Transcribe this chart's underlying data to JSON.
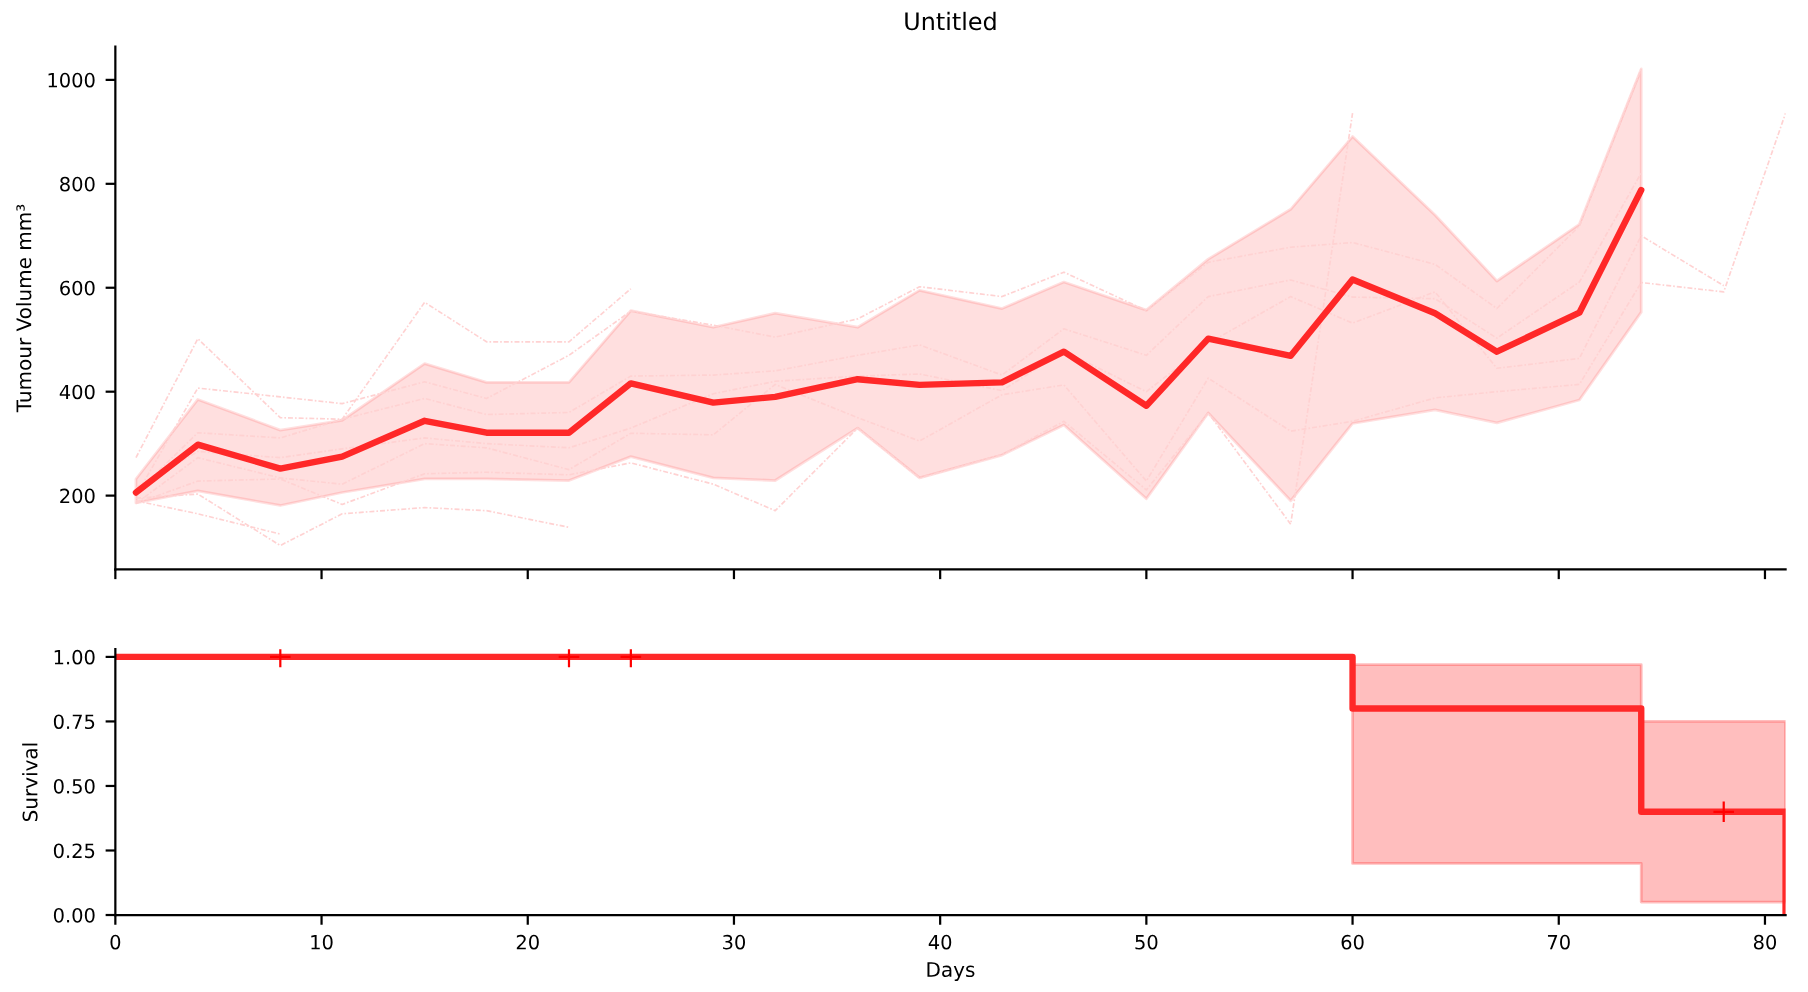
{
  "chart_data": [
    {
      "type": "line",
      "title": "Untitled",
      "ylabel": "Tumour Volume mm³",
      "xlim": [
        0,
        81
      ],
      "xticks": [
        0,
        10,
        20,
        30,
        40,
        50,
        60,
        70,
        80
      ],
      "ylim": [
        58,
        1064
      ],
      "yticks": [
        200,
        400,
        600,
        800,
        1000
      ],
      "tick_labels": "y",
      "series": [
        {
          "color": "#ffd2d2",
          "line_style": "dashed",
          "x": [
            1,
            4,
            8
          ],
          "values": [
            190,
            165,
            126
          ]
        },
        {
          "color": "#ffd2d2",
          "line_style": "dashed",
          "x": [
            1,
            4,
            8,
            11,
            15,
            18,
            22
          ],
          "values": [
            195,
            203,
            104,
            165,
            177,
            171,
            139
          ]
        },
        {
          "color": "#ffd2d2",
          "line_style": "dashed",
          "x": [
            1,
            4,
            8,
            11,
            15,
            18,
            22,
            25
          ],
          "values": [
            273,
            502,
            350,
            347,
            572,
            496,
            496,
            598
          ]
        },
        {
          "color": "#ffd2d2",
          "line_style": "dashed",
          "x": [
            1,
            4,
            8,
            11,
            15,
            18,
            22,
            25,
            29,
            32,
            36,
            39,
            43,
            46,
            50,
            53,
            57,
            60,
            64,
            67,
            71,
            74
          ],
          "values": [
            200,
            407,
            390,
            377,
            419,
            387,
            470,
            555,
            528,
            505,
            540,
            602,
            583,
            630,
            556,
            649,
            678,
            687,
            645,
            560,
            719,
            1021
          ]
        },
        {
          "color": "#ffd2d2",
          "line_style": "dashed",
          "x": [
            1,
            4,
            8,
            11,
            15,
            18,
            22,
            25,
            29,
            32,
            36,
            39,
            43,
            46,
            50,
            53,
            57,
            60,
            64,
            67,
            71,
            74
          ],
          "values": [
            205,
            321,
            311,
            347,
            387,
            356,
            360,
            430,
            432,
            440,
            470,
            490,
            432,
            521,
            470,
            583,
            615,
            582,
            579,
            503,
            611,
            821
          ]
        },
        {
          "color": "#ffd2d2",
          "line_style": "dashed",
          "x": [
            1,
            4,
            8,
            11,
            15,
            18,
            22,
            25,
            29,
            32,
            36,
            39,
            43,
            46,
            50,
            53,
            57,
            60,
            64,
            67,
            71,
            74,
            78
          ],
          "values": [
            215,
            285,
            273,
            290,
            311,
            300,
            292,
            330,
            396,
            420,
            430,
            434,
            402,
            478,
            400,
            493,
            583,
            532,
            592,
            445,
            464,
            700,
            604
          ]
        },
        {
          "color": "#ffd2d2",
          "line_style": "dashed",
          "x": [
            1,
            4,
            8,
            11,
            15,
            18,
            22,
            25,
            29,
            32,
            36,
            39,
            43,
            46,
            50,
            53,
            57,
            60,
            64,
            67,
            71,
            74,
            78,
            81
          ],
          "values": [
            185,
            273,
            234,
            222,
            300,
            292,
            250,
            320,
            317,
            414,
            350,
            305,
            394,
            413,
            228,
            426,
            324,
            343,
            388,
            400,
            414,
            610,
            592,
            936
          ]
        },
        {
          "color": "#ffd2d2",
          "line_style": "dashed",
          "x": [
            1,
            4,
            8,
            11,
            15,
            18,
            22,
            25,
            29,
            32,
            36,
            39,
            43,
            46,
            50,
            53,
            57,
            60
          ],
          "values": [
            185,
            228,
            232,
            183,
            242,
            245,
            240,
            263,
            222,
            171,
            330,
            234,
            279,
            343,
            211,
            359,
            145,
            936
          ]
        },
        {
          "color": "#ff2828",
          "line_style": "solid",
          "x": [
            1,
            4,
            8,
            11,
            15,
            18,
            22,
            25,
            29,
            32,
            36,
            39,
            43,
            46,
            50,
            53,
            57,
            60,
            64,
            67,
            71,
            74
          ],
          "values": [
            206,
            298,
            252,
            275,
            344,
            321,
            321,
            416,
            379,
            390,
            424,
            413,
            418,
            477,
            373,
            502,
            469,
            616,
            551,
            477,
            552,
            788
          ],
          "lower": [
            186,
            209,
            181,
            206,
            232,
            232,
            229,
            275,
            234,
            229,
            330,
            234,
            278,
            336,
            194,
            359,
            190,
            339,
            365,
            340,
            384,
            553
          ],
          "upper": [
            232,
            385,
            326,
            345,
            454,
            418,
            418,
            556,
            524,
            551,
            524,
            595,
            560,
            611,
            557,
            655,
            751,
            891,
            740,
            613,
            722,
            1021
          ]
        }
      ]
    },
    {
      "type": "step",
      "xlabel": "Days",
      "ylabel": "Survival",
      "xlim": [
        0,
        81
      ],
      "xticks": [
        0,
        10,
        20,
        30,
        40,
        50,
        60,
        70,
        80
      ],
      "ylim": [
        0,
        1.03
      ],
      "yticks": [
        {
          "value": 0,
          "label": "0.00"
        },
        {
          "value": 0.25,
          "label": "0.25"
        },
        {
          "value": 0.5,
          "label": "0.50"
        },
        {
          "value": 0.75,
          "label": "0.75"
        },
        {
          "value": 1,
          "label": "1.00"
        }
      ],
      "series": [
        {
          "color": "#ff2828",
          "line_style": "solid",
          "x": [
            0,
            60,
            74,
            81
          ],
          "values": [
            1,
            0.8,
            0.4,
            0
          ],
          "lower": [
            null,
            0.2,
            0.05,
            0.05
          ],
          "upper": [
            null,
            0.97,
            0.75,
            0.75
          ]
        },
        {
          "type": "scatter",
          "marker": "cross",
          "color": "#ff0000",
          "x": [
            8,
            22,
            25,
            78
          ],
          "values": [
            1,
            1,
            1,
            0.4
          ]
        }
      ]
    }
  ]
}
